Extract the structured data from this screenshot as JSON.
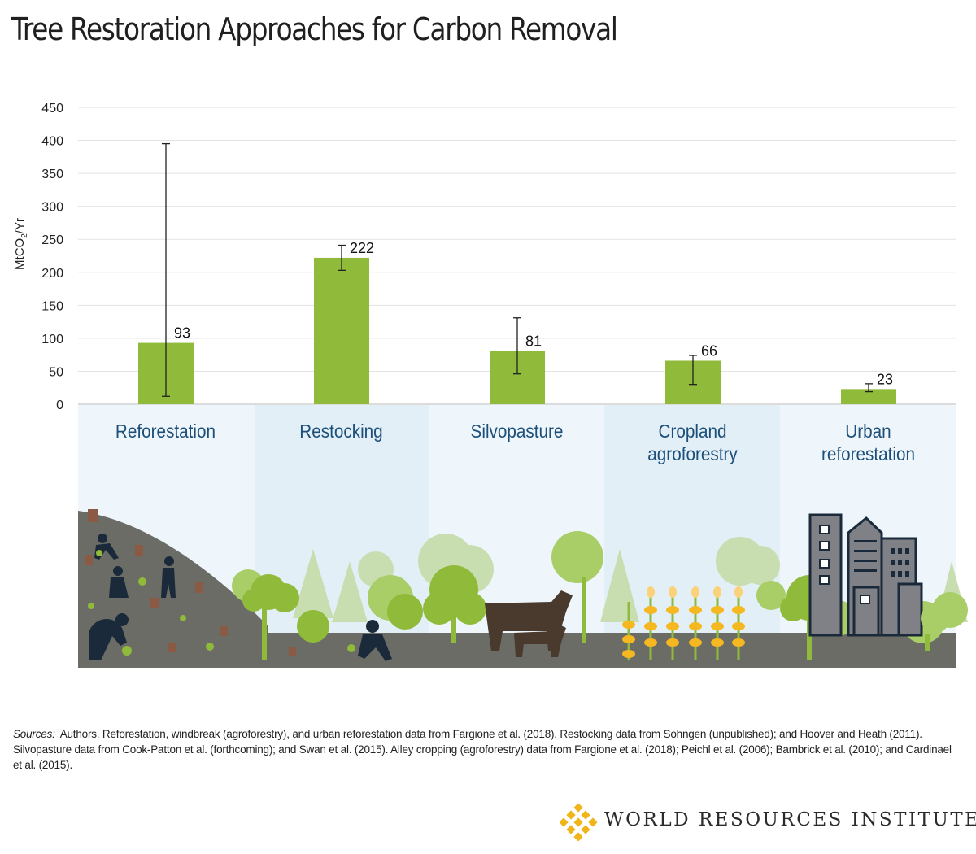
{
  "title": "Tree Restoration Approaches for Carbon Removal",
  "colors": {
    "bar": "#8fba3a",
    "category_label": "#1c4f7a",
    "panel_light": "#eef6fb",
    "panel_dark": "#e2eff7",
    "ground": "#6c6c66"
  },
  "chart_data": {
    "type": "bar",
    "title": "Tree Restoration Approaches for Carbon Removal",
    "ylabel": "MtCO",
    "ylabel_subscript": "2",
    "ylabel_suffix": "/Yr",
    "ylim": [
      0,
      450
    ],
    "yticks": [
      0,
      50,
      100,
      150,
      200,
      250,
      300,
      350,
      400,
      450
    ],
    "grid": true,
    "categories": [
      {
        "line1": "Reforestation",
        "line2": ""
      },
      {
        "line1": "Restocking",
        "line2": ""
      },
      {
        "line1": "Silvopasture",
        "line2": ""
      },
      {
        "line1": "Cropland",
        "line2": "agroforestry"
      },
      {
        "line1": "Urban",
        "line2": "reforestation"
      }
    ],
    "values": [
      93,
      222,
      81,
      66,
      23
    ],
    "error_low": [
      12,
      203,
      46,
      30,
      19
    ],
    "error_high": [
      395,
      241,
      131,
      74,
      31
    ]
  },
  "sources": {
    "label": "Sources:",
    "text": "Authors. Reforestation, windbreak (agroforestry), and urban reforestation data from Fargione et al. (2018). Restocking data from Sohngen (unpublished); and Hoover and Heath (2011). Silvopasture data from Cook-Patton et al. (forthcoming); and Swan et al. (2015). Alley cropping (agroforestry) data from Fargione et al. (2018); Peichl et al. (2006); Bambrick et al. (2010); and Cardinael et al. (2015)."
  },
  "logo": {
    "name": "WORLD RESOURCES INSTITUTE",
    "icon": "wri-knot-icon"
  }
}
